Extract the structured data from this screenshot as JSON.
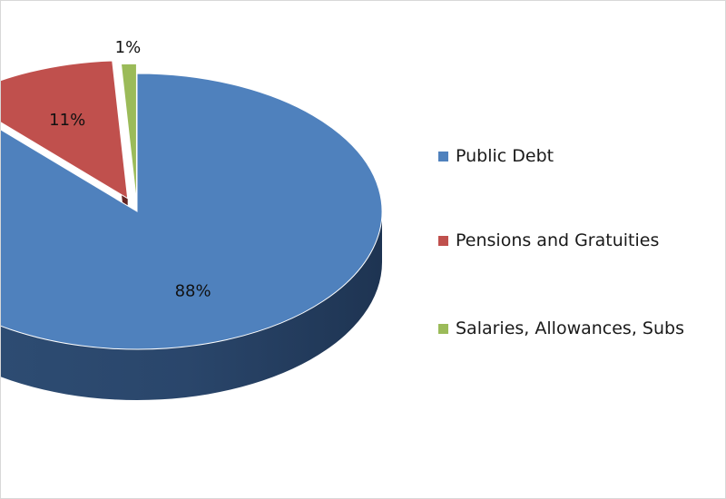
{
  "chart_data": {
    "type": "pie",
    "style": "3d-exploded",
    "legend_position": "right",
    "slices": [
      {
        "label": "Public Debt",
        "value": 88,
        "display": "88%",
        "color": "#4f81bd"
      },
      {
        "label": "Pensions and Gratuities",
        "value": 11,
        "display": "11%",
        "color": "#c0504d"
      },
      {
        "label": "Salaries, Allowances, Subs",
        "value": 1,
        "display": "1%",
        "color": "#9bbb59"
      }
    ]
  }
}
